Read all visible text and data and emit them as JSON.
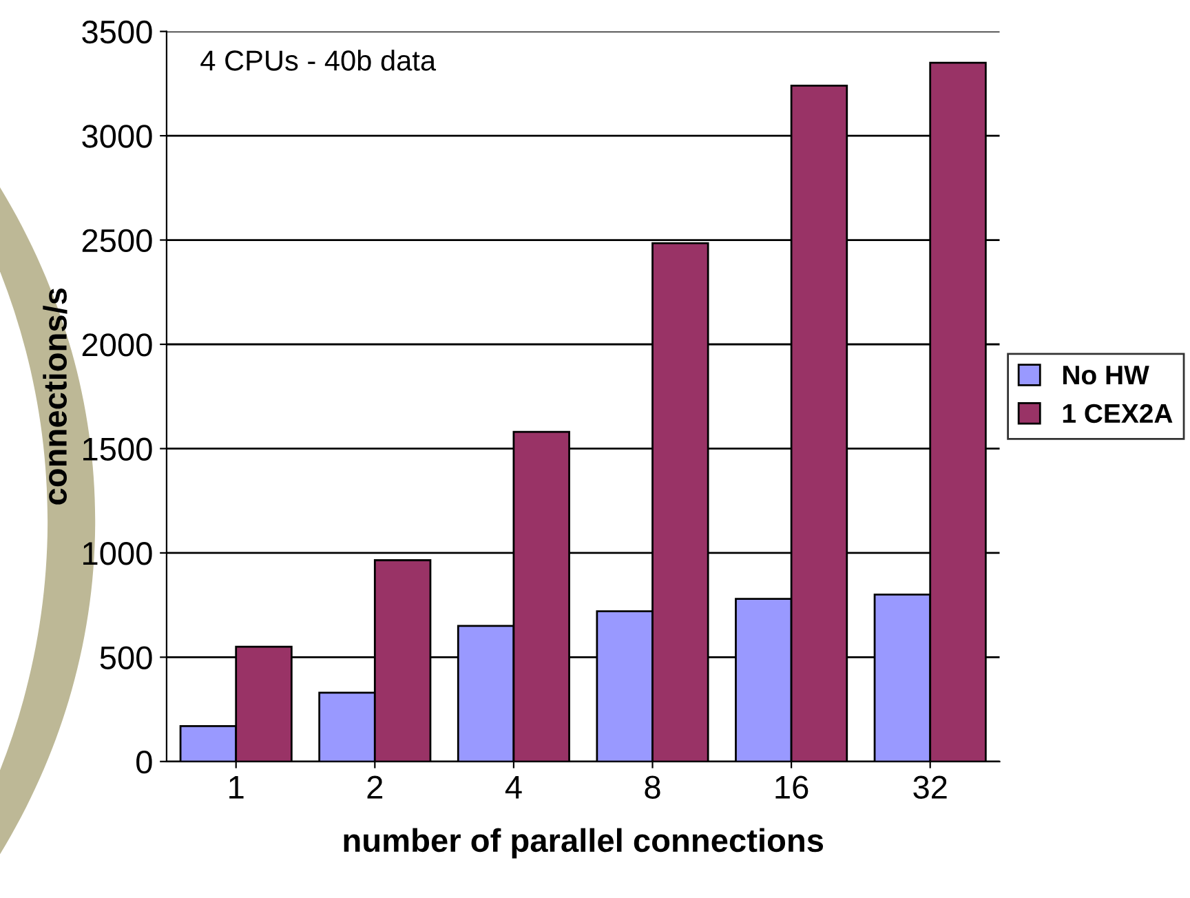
{
  "chart_data": {
    "type": "bar",
    "categories": [
      "1",
      "2",
      "4",
      "8",
      "16",
      "32"
    ],
    "series": [
      {
        "name": "No HW",
        "color": "#9999ff",
        "values": [
          170,
          330,
          650,
          720,
          780,
          800
        ]
      },
      {
        "name": "1 CEX2A",
        "color": "#993366",
        "values": [
          550,
          965,
          1580,
          2485,
          3240,
          3350
        ]
      }
    ],
    "xlabel": "number of parallel connections",
    "ylabel": "connections/s",
    "annotations": [
      "4 CPUs - 40b data"
    ],
    "ylim": [
      0,
      3500
    ],
    "yticks": [
      0,
      500,
      1000,
      1500,
      2000,
      2500,
      3000,
      3500
    ],
    "grid": "y",
    "legend": "right"
  }
}
